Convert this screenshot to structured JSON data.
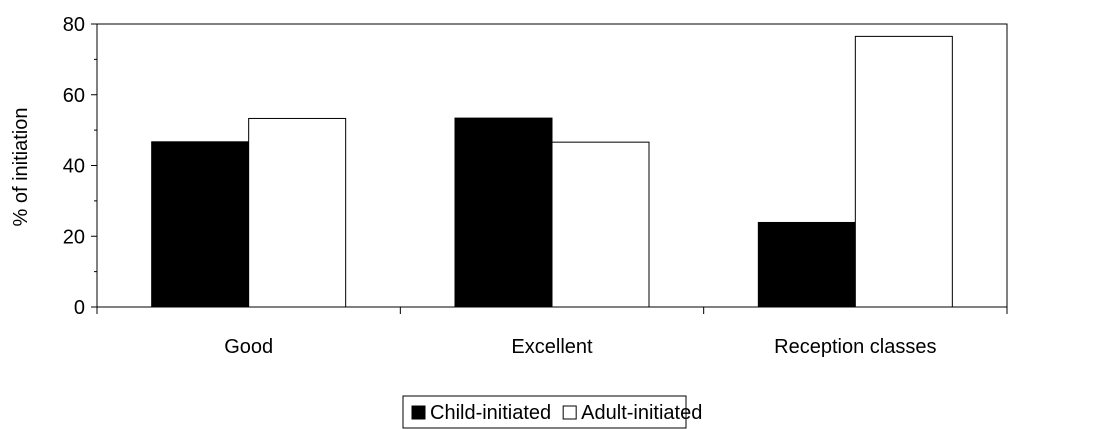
{
  "chart_data": {
    "type": "bar",
    "title": "",
    "xlabel": "",
    "ylabel": "% of initiation",
    "categories": [
      "Good",
      "Excellent",
      "Reception classes"
    ],
    "series": [
      {
        "name": "Child-initiated",
        "values": [
          46.7,
          53.4,
          23.9
        ],
        "color": "#000000"
      },
      {
        "name": "Adult-initiated",
        "values": [
          53.3,
          46.6,
          76.5
        ],
        "color": "#ffffff"
      }
    ],
    "ylim": [
      0,
      80
    ],
    "yticks": [
      "0",
      "20",
      "40",
      "60",
      "80"
    ],
    "grid": false,
    "legend_position": "bottom-center"
  }
}
